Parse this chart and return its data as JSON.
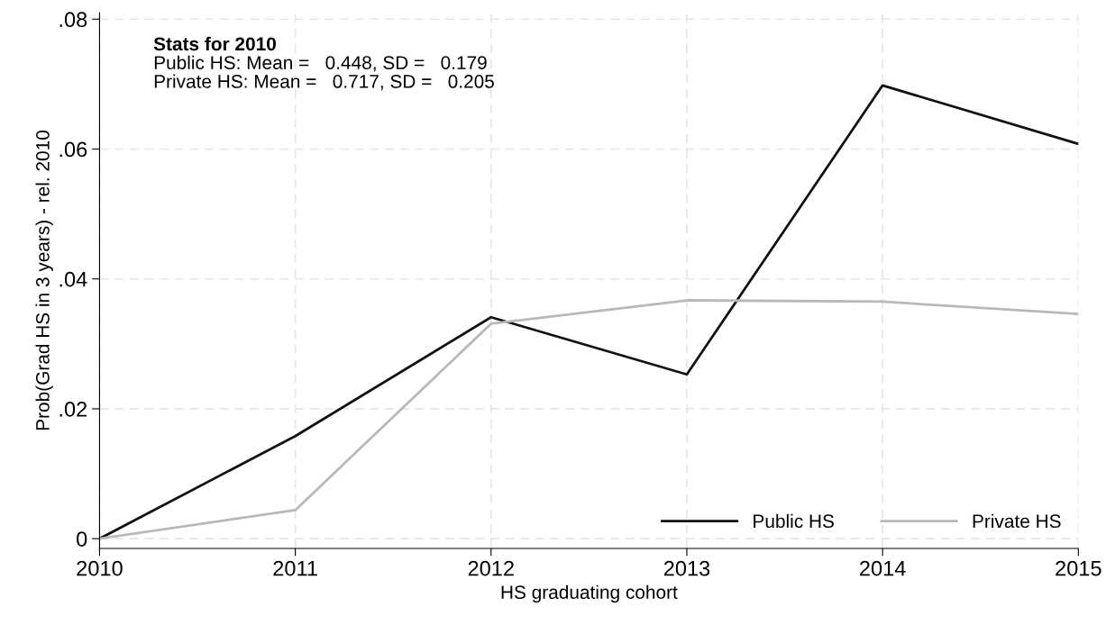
{
  "chart_data": {
    "type": "line",
    "xlabel": "HS graduating cohort",
    "ylabel": "Prob(Grad HS in 3 years) - rel. 2010",
    "x": [
      2010,
      2011,
      2012,
      2013,
      2014,
      2015
    ],
    "series": [
      {
        "name": "Public HS",
        "color": "#111111",
        "values": [
          0,
          0.0158,
          0.0341,
          0.0253,
          0.0698,
          0.0608
        ]
      },
      {
        "name": "Private HS",
        "color": "#b8b8b8",
        "values": [
          0,
          0.0044,
          0.0331,
          0.0367,
          0.0365,
          0.0346
        ]
      }
    ],
    "xlim": [
      2010,
      2015
    ],
    "xticks": [
      2010,
      2011,
      2012,
      2013,
      2014,
      2015
    ],
    "ylim": [
      -0.0015,
      0.081
    ],
    "yticks": [
      {
        "value": 0,
        "label": "0"
      },
      {
        "value": 0.02,
        "label": ".02"
      },
      {
        "value": 0.04,
        "label": ".04"
      },
      {
        "value": 0.06,
        "label": ".06"
      },
      {
        "value": 0.08,
        "label": ".08"
      }
    ],
    "annotations": [
      "Stats for 2010",
      "Public HS: Mean =   0.448, SD =   0.179",
      "Private HS: Mean =   0.717, SD =   0.205"
    ],
    "grid": true,
    "legend": "bottom right",
    "marker": "none",
    "line_style": "solid"
  }
}
